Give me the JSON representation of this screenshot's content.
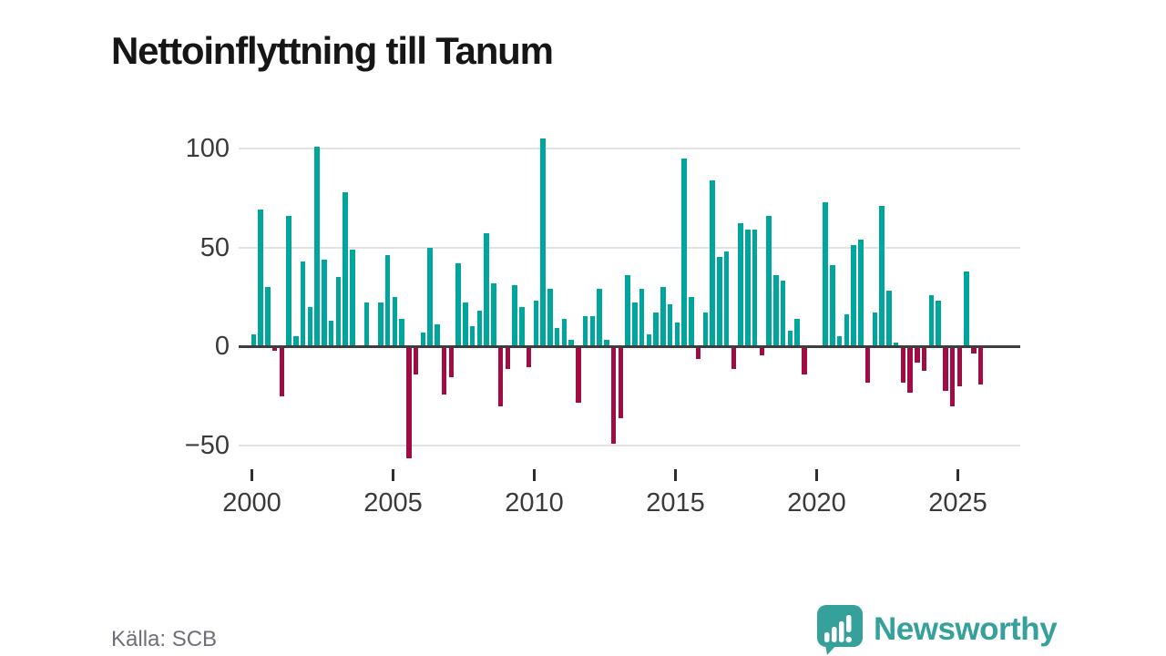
{
  "title": "Nettoinflyttning till Tanum",
  "source": "Källa: SCB",
  "branding": {
    "name": "Newsworthy",
    "icon": "newsworthy-chart-bubble-icon"
  },
  "colors": {
    "title": "#161616",
    "positive": "#00a69c",
    "negative": "#a00d45",
    "grid": "#e2e2e2",
    "zero_line": "#3d3d3d",
    "tick": "#2f2f2f",
    "axis_text": "#3a3a3a",
    "source_text": "#6f6f78",
    "brand": "#36a09b"
  },
  "chart_data": {
    "type": "bar",
    "title": "Nettoinflyttning till Tanum",
    "frequency": "quarterly",
    "x_period_start": "2000-Q1",
    "x_period_end": "2025-Q4",
    "xlabel": "",
    "ylabel": "",
    "ylim": [
      -60,
      110
    ],
    "grid": true,
    "legend": "none",
    "positive_color": "#00a69c",
    "negative_color": "#a00d45",
    "y_ticks": [
      100,
      50,
      0,
      -50
    ],
    "y_tick_labels": [
      "100",
      "50",
      "0",
      "−50"
    ],
    "x_ticks_years": [
      2000,
      2005,
      2010,
      2015,
      2020,
      2025
    ],
    "x_tick_labels": [
      "2000",
      "2005",
      "2010",
      "2015",
      "2020",
      "2025"
    ],
    "values": [
      6,
      69,
      30,
      -2,
      -25,
      66,
      5,
      43,
      20,
      101,
      44,
      13,
      35,
      78,
      49,
      0,
      22,
      0,
      22,
      46,
      25,
      14,
      -56,
      -14,
      7,
      50,
      11,
      -24,
      -15,
      42,
      22,
      10,
      18,
      57,
      32,
      -30,
      -11,
      31,
      20,
      -10,
      23,
      105,
      29,
      9,
      14,
      3,
      -28,
      15,
      15,
      29,
      3,
      -49,
      -36,
      36,
      22,
      29,
      6,
      17,
      30,
      21,
      12,
      95,
      25,
      -6,
      17,
      84,
      45,
      48,
      -11,
      62,
      59,
      59,
      -4,
      66,
      36,
      33,
      8,
      14,
      -14,
      0,
      0,
      73,
      41,
      5,
      16,
      51,
      54,
      -18,
      17,
      71,
      28,
      2,
      -18,
      -23,
      -8,
      -12,
      26,
      23,
      -22,
      -30,
      -20,
      38,
      -3,
      -19
    ]
  }
}
